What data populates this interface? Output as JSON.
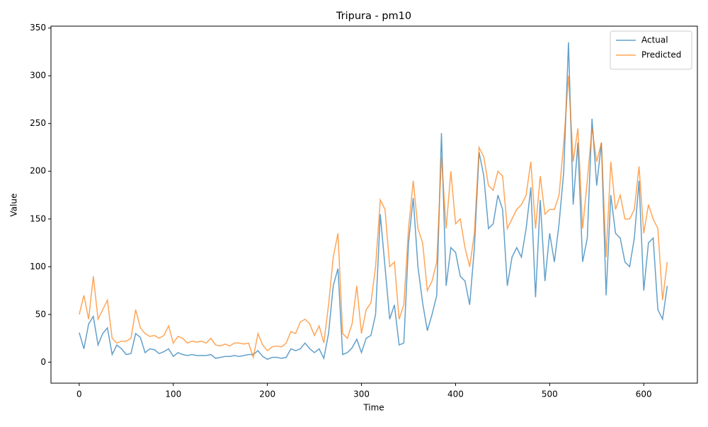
{
  "chart_data": {
    "type": "line",
    "title": "Tripura - pm10",
    "x_label": "Time",
    "y_label": "Value",
    "x": [
      0,
      5,
      10,
      15,
      20,
      25,
      30,
      35,
      40,
      45,
      50,
      55,
      60,
      65,
      70,
      75,
      80,
      85,
      90,
      95,
      100,
      105,
      110,
      115,
      120,
      125,
      130,
      135,
      140,
      145,
      150,
      155,
      160,
      165,
      170,
      175,
      180,
      185,
      190,
      195,
      200,
      205,
      210,
      215,
      220,
      225,
      230,
      235,
      240,
      245,
      250,
      255,
      260,
      265,
      270,
      275,
      280,
      285,
      290,
      295,
      300,
      305,
      310,
      315,
      320,
      325,
      330,
      335,
      340,
      345,
      350,
      355,
      360,
      365,
      370,
      375,
      380,
      385,
      390,
      395,
      400,
      405,
      410,
      415,
      420,
      425,
      430,
      435,
      440,
      445,
      450,
      455,
      460,
      465,
      470,
      475,
      480,
      485,
      490,
      495,
      500,
      505,
      510,
      515,
      520,
      525,
      530,
      535,
      540,
      545,
      550,
      555,
      560,
      565,
      570,
      575,
      580,
      585,
      590,
      595,
      600,
      605,
      610,
      615,
      620,
      625
    ],
    "series": [
      {
        "name": "Actual",
        "color": "#1f77b4",
        "values": [
          31,
          14,
          40,
          48,
          18,
          30,
          36,
          8,
          18,
          14,
          8,
          9,
          30,
          26,
          10,
          14,
          13,
          9,
          11,
          14,
          6,
          10,
          8,
          7,
          8,
          7,
          7,
          7,
          8,
          4,
          5,
          6,
          6,
          7,
          6,
          7,
          8,
          8,
          12,
          6,
          3,
          5,
          5,
          4,
          5,
          14,
          12,
          14,
          20,
          14,
          10,
          14,
          4,
          30,
          80,
          98,
          8,
          10,
          15,
          24,
          10,
          25,
          28,
          50,
          155,
          100,
          45,
          60,
          18,
          20,
          125,
          172,
          100,
          62,
          33,
          50,
          70,
          240,
          80,
          120,
          115,
          90,
          85,
          60,
          120,
          220,
          195,
          140,
          145,
          175,
          160,
          80,
          110,
          120,
          110,
          140,
          183,
          68,
          170,
          85,
          135,
          105,
          145,
          200,
          335,
          165,
          230,
          105,
          130,
          255,
          185,
          230,
          70,
          175,
          135,
          130,
          105,
          100,
          130,
          190,
          75,
          125,
          130,
          55,
          45,
          80
        ]
      },
      {
        "name": "Predicted",
        "color": "#ff7f0e",
        "values": [
          50,
          70,
          45,
          90,
          45,
          55,
          65,
          25,
          20,
          22,
          22,
          25,
          55,
          36,
          30,
          27,
          28,
          25,
          28,
          38,
          20,
          27,
          25,
          20,
          22,
          21,
          22,
          20,
          25,
          18,
          17,
          19,
          17,
          20,
          20,
          19,
          20,
          5,
          30,
          18,
          12,
          16,
          17,
          16,
          20,
          32,
          30,
          42,
          45,
          40,
          28,
          38,
          20,
          60,
          110,
          135,
          30,
          25,
          40,
          80,
          30,
          55,
          62,
          100,
          170,
          160,
          100,
          105,
          45,
          60,
          140,
          190,
          140,
          125,
          75,
          85,
          105,
          215,
          140,
          200,
          145,
          150,
          120,
          100,
          135,
          225,
          215,
          185,
          180,
          200,
          195,
          140,
          150,
          160,
          165,
          175,
          210,
          140,
          195,
          155,
          160,
          160,
          175,
          230,
          300,
          210,
          245,
          140,
          190,
          245,
          210,
          230,
          110,
          210,
          160,
          175,
          150,
          150,
          160,
          205,
          135,
          165,
          150,
          140,
          65,
          105
        ]
      }
    ],
    "xlim": [
      -30,
      657
    ],
    "ylim": [
      -22,
      352
    ],
    "xticks": [
      0,
      100,
      200,
      300,
      400,
      500,
      600
    ],
    "yticks": [
      0,
      50,
      100,
      150,
      200,
      250,
      300,
      350
    ],
    "legend": "upper right"
  }
}
